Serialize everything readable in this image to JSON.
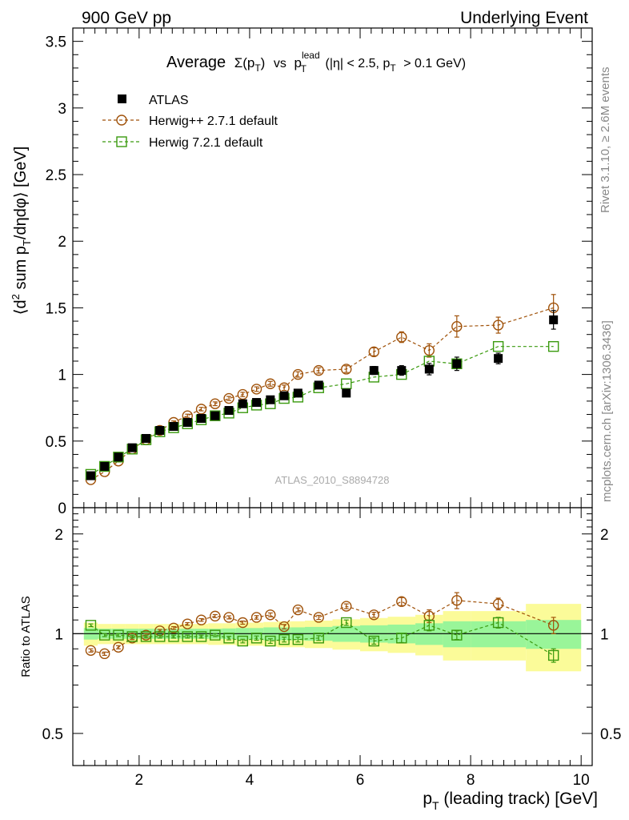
{
  "header": {
    "left": "900 GeV pp",
    "right": "Underlying Event"
  },
  "side": {
    "rivet": "Rivet 3.1.10, ≥ 2.6M events",
    "mcplots": "mcplots.cern.ch [arXiv:1306.3436]"
  },
  "chart_data": [
    {
      "type": "scatter",
      "title_parts": {
        "average": "Average",
        "sigma": "Σ(p",
        "sigma_sub": "T",
        "sigma_close": ")",
        "vs": "vs",
        "p": "p",
        "p_sup": "lead",
        "p_sub": "T",
        "cut1": "(|η| < 2.5, p",
        "cut_sub": "T",
        "cut2": "> 0.1 GeV)"
      },
      "ylabel_parts": {
        "a": "⟨d",
        "sup": "2",
        "b": " sum p",
        "sub": "T",
        "c": "/dηdφ⟩ [GeV]"
      },
      "watermark": "ATLAS_2010_S8894728",
      "xlim": [
        0.8,
        10.2
      ],
      "ylim": [
        0,
        3.6
      ],
      "x_ticks": [
        2,
        4,
        6,
        8,
        10
      ],
      "y_ticks": [
        0,
        0.5,
        1,
        1.5,
        2,
        2.5,
        3,
        3.5
      ],
      "y_tick_labels": [
        "0",
        "0.5",
        "1",
        "1.5",
        "2",
        "2.5",
        "3",
        "3.5"
      ],
      "legend_position": "top-left",
      "series": [
        {
          "name": "ATLAS",
          "marker": "filled-square",
          "color": "#000000",
          "x": [
            1.125,
            1.375,
            1.625,
            1.875,
            2.125,
            2.375,
            2.625,
            2.875,
            3.125,
            3.375,
            3.625,
            3.875,
            4.125,
            4.375,
            4.625,
            4.875,
            5.25,
            5.75,
            6.25,
            6.75,
            7.25,
            7.75,
            8.5,
            9.5
          ],
          "y": [
            0.24,
            0.31,
            0.38,
            0.45,
            0.52,
            0.58,
            0.61,
            0.64,
            0.67,
            0.69,
            0.73,
            0.78,
            0.79,
            0.81,
            0.84,
            0.86,
            0.92,
            0.86,
            1.03,
            1.03,
            1.04,
            1.08,
            1.12,
            1.41
          ],
          "yerr": [
            0.005,
            0.005,
            0.006,
            0.006,
            0.007,
            0.007,
            0.008,
            0.009,
            0.01,
            0.011,
            0.012,
            0.013,
            0.014,
            0.016,
            0.018,
            0.019,
            0.018,
            0.024,
            0.03,
            0.036,
            0.043,
            0.05,
            0.04,
            0.07
          ]
        },
        {
          "name": "Herwig++ 2.7.1 default",
          "marker": "open-circle",
          "color": "#a0520a",
          "x": [
            1.125,
            1.375,
            1.625,
            1.875,
            2.125,
            2.375,
            2.625,
            2.875,
            3.125,
            3.375,
            3.625,
            3.875,
            4.125,
            4.375,
            4.625,
            4.875,
            5.25,
            5.75,
            6.25,
            6.75,
            7.25,
            7.75,
            8.5,
            9.5
          ],
          "y": [
            0.21,
            0.27,
            0.35,
            0.44,
            0.51,
            0.58,
            0.64,
            0.69,
            0.74,
            0.78,
            0.82,
            0.85,
            0.89,
            0.93,
            0.9,
            1.0,
            1.03,
            1.04,
            1.17,
            1.28,
            1.18,
            1.36,
            1.37,
            1.5
          ],
          "yerr": [
            0.005,
            0.006,
            0.007,
            0.008,
            0.009,
            0.01,
            0.011,
            0.012,
            0.013,
            0.014,
            0.015,
            0.016,
            0.017,
            0.018,
            0.02,
            0.02,
            0.02,
            0.025,
            0.03,
            0.04,
            0.05,
            0.08,
            0.06,
            0.1
          ]
        },
        {
          "name": "Herwig 7.2.1 default",
          "marker": "open-square",
          "color": "#3a9a0e",
          "x": [
            1.125,
            1.375,
            1.625,
            1.875,
            2.125,
            2.375,
            2.625,
            2.875,
            3.125,
            3.375,
            3.625,
            3.875,
            4.125,
            4.375,
            4.625,
            4.875,
            5.25,
            5.75,
            6.25,
            6.75,
            7.25,
            7.75,
            8.5,
            9.5
          ],
          "y": [
            0.25,
            0.31,
            0.38,
            0.44,
            0.51,
            0.57,
            0.6,
            0.63,
            0.66,
            0.69,
            0.71,
            0.75,
            0.77,
            0.78,
            0.82,
            0.83,
            0.9,
            0.93,
            0.98,
            1.0,
            1.1,
            1.08,
            1.21,
            1.21
          ]
        }
      ]
    },
    {
      "type": "scatter",
      "ylabel": "Ratio to ATLAS",
      "xlabel_parts": {
        "p": "p",
        "sub": "T",
        "rest": " (leading track) [GeV]"
      },
      "xlim": [
        0.8,
        10.2
      ],
      "ylim": [
        0.4,
        2.4
      ],
      "y_scale": "log",
      "reference_line": 1,
      "x_ticks": [
        2,
        4,
        6,
        8,
        10
      ],
      "x_tick_labels": [
        "2",
        "4",
        "6",
        "8",
        "10"
      ],
      "y_ticks": [
        0.5,
        1,
        2
      ],
      "y_tick_labels": [
        "0.5",
        "1",
        "2"
      ],
      "bands": {
        "x_edges": [
          1.0,
          1.25,
          1.5,
          1.75,
          2.0,
          2.25,
          2.5,
          2.75,
          3.0,
          3.25,
          3.5,
          3.75,
          4.0,
          4.25,
          4.5,
          4.75,
          5.0,
          5.5,
          6.0,
          6.5,
          7.0,
          7.5,
          8.0,
          9.0,
          10.0
        ],
        "inner": [
          0.04,
          0.035,
          0.035,
          0.035,
          0.035,
          0.035,
          0.035,
          0.035,
          0.035,
          0.035,
          0.037,
          0.04,
          0.04,
          0.045,
          0.045,
          0.045,
          0.048,
          0.055,
          0.06,
          0.065,
          0.075,
          0.09,
          0.09,
          0.1
        ],
        "outer": [
          0.08,
          0.07,
          0.07,
          0.07,
          0.07,
          0.07,
          0.07,
          0.07,
          0.07,
          0.075,
          0.075,
          0.08,
          0.08,
          0.085,
          0.09,
          0.09,
          0.095,
          0.105,
          0.115,
          0.125,
          0.14,
          0.17,
          0.17,
          0.23
        ],
        "inner_color": "#99f599",
        "outer_color": "#fbfb99"
      },
      "series": [
        {
          "name": "Herwig++ 2.7.1 default",
          "color": "#a0520a",
          "x": [
            1.125,
            1.375,
            1.625,
            1.875,
            2.125,
            2.375,
            2.625,
            2.875,
            3.125,
            3.375,
            3.625,
            3.875,
            4.125,
            4.375,
            4.625,
            4.875,
            5.25,
            5.75,
            6.25,
            6.75,
            7.25,
            7.75,
            8.5,
            9.5
          ],
          "y": [
            0.89,
            0.87,
            0.91,
            0.97,
            0.99,
            1.02,
            1.04,
            1.07,
            1.1,
            1.13,
            1.12,
            1.08,
            1.12,
            1.14,
            1.05,
            1.18,
            1.12,
            1.21,
            1.14,
            1.25,
            1.13,
            1.26,
            1.23,
            1.06
          ],
          "yerr": [
            0.01,
            0.01,
            0.01,
            0.01,
            0.01,
            0.01,
            0.01,
            0.01,
            0.01,
            0.012,
            0.012,
            0.012,
            0.014,
            0.015,
            0.016,
            0.016,
            0.016,
            0.02,
            0.02,
            0.035,
            0.05,
            0.07,
            0.05,
            0.06
          ]
        },
        {
          "name": "Herwig 7.2.1 default",
          "color": "#3a9a0e",
          "x": [
            1.125,
            1.375,
            1.625,
            1.875,
            2.125,
            2.375,
            2.625,
            2.875,
            3.125,
            3.375,
            3.625,
            3.875,
            4.125,
            4.375,
            4.625,
            4.875,
            5.25,
            5.75,
            6.25,
            6.75,
            7.25,
            7.75,
            8.5,
            9.5
          ],
          "y": [
            1.06,
            0.99,
            0.99,
            0.98,
            0.98,
            0.98,
            0.98,
            0.98,
            0.98,
            0.99,
            0.97,
            0.95,
            0.97,
            0.95,
            0.96,
            0.96,
            0.97,
            1.08,
            0.95,
            0.97,
            1.06,
            0.99,
            1.08,
            0.86
          ],
          "yerr": [
            0.01,
            0.01,
            0.01,
            0.01,
            0.01,
            0.01,
            0.01,
            0.01,
            0.01,
            0.01,
            0.012,
            0.012,
            0.014,
            0.015,
            0.016,
            0.016,
            0.016,
            0.02,
            0.02,
            0.03,
            0.04,
            0.03,
            0.04,
            0.04
          ]
        }
      ]
    }
  ]
}
